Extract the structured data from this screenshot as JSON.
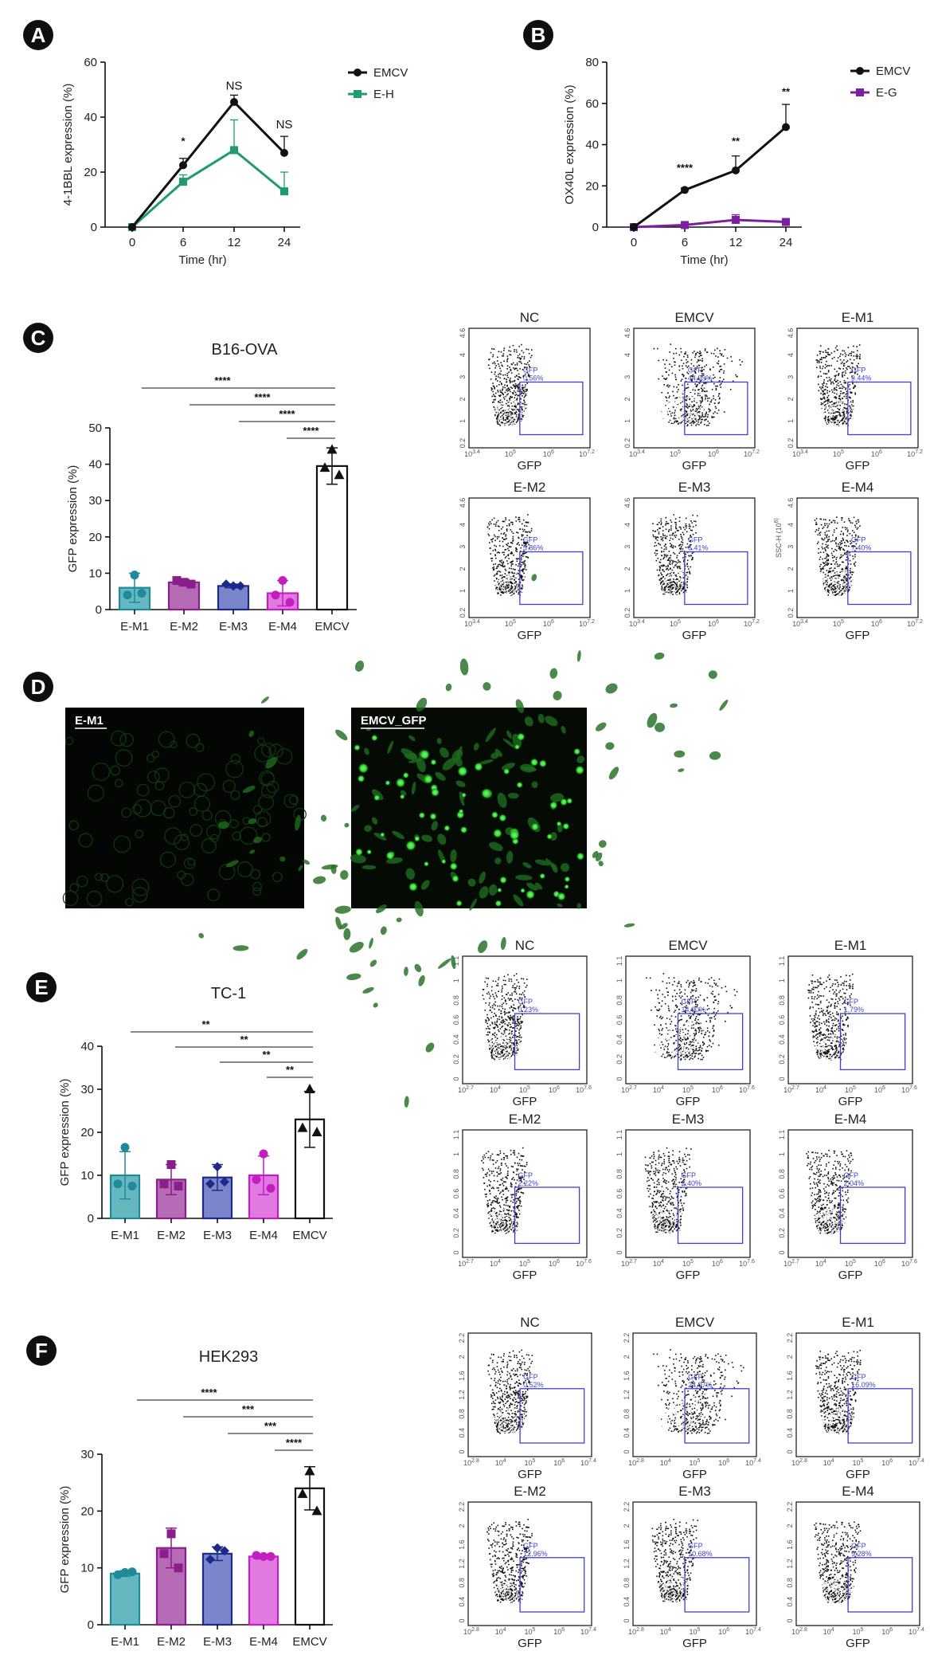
{
  "panels": {
    "A": "A",
    "B": "B",
    "C": "C",
    "D": "D",
    "E": "E",
    "F": "F"
  },
  "chart_data": [
    {
      "id": "A",
      "type": "line",
      "x": [
        0,
        6,
        12,
        24
      ],
      "xlabel": "Time (hr)",
      "ylabel": "4-1BBL expression (%)",
      "ylim": [
        0,
        60
      ],
      "yticks": [
        0,
        20,
        40,
        60
      ],
      "series": [
        {
          "name": "EMCV",
          "values": [
            0,
            22.5,
            45.5,
            27
          ],
          "errors": [
            0,
            2.5,
            2.5,
            6
          ],
          "color": "#111111",
          "marker": "circle"
        },
        {
          "name": "E-H",
          "values": [
            0,
            16.5,
            28,
            13
          ],
          "errors": [
            0,
            2.5,
            11,
            7
          ],
          "color": "#1f9b6e",
          "marker": "square"
        }
      ],
      "annotations": [
        {
          "x": 6,
          "text": "*",
          "y": 30
        },
        {
          "x": 12,
          "text": "NS",
          "y": 50
        },
        {
          "x": 24,
          "text": "NS",
          "y": 36
        }
      ]
    },
    {
      "id": "B",
      "type": "line",
      "x": [
        0,
        6,
        12,
        24
      ],
      "xlabel": "Time (hr)",
      "ylabel": "OX40L expression (%)",
      "ylim": [
        0,
        80
      ],
      "yticks": [
        0,
        20,
        40,
        60,
        80
      ],
      "series": [
        {
          "name": "EMCV",
          "values": [
            0,
            18,
            27.5,
            48.5
          ],
          "errors": [
            0,
            1,
            7,
            11
          ],
          "color": "#111111",
          "marker": "circle"
        },
        {
          "name": "E-G",
          "values": [
            0,
            1,
            3.5,
            2.5
          ],
          "errors": [
            0,
            1.5,
            2.5,
            1.2
          ],
          "color": "#7b1fa2",
          "marker": "square"
        }
      ],
      "annotations": [
        {
          "x": 6,
          "text": "****",
          "y": 27
        },
        {
          "x": 12,
          "text": "**",
          "y": 40
        },
        {
          "x": 24,
          "text": "**",
          "y": 64
        }
      ]
    },
    {
      "id": "C",
      "type": "bar",
      "title": "B16-OVA",
      "categories": [
        "E-M1",
        "E-M2",
        "E-M3",
        "E-M4",
        "EMCV"
      ],
      "values": [
        6,
        7.5,
        6.5,
        4.5,
        39.5
      ],
      "errors": [
        4,
        0.8,
        0.5,
        3.5,
        5
      ],
      "points": [
        [
          9.5,
          4,
          4.5
        ],
        [
          7.5,
          8,
          7
        ],
        [
          6.5,
          7,
          6.5
        ],
        [
          8,
          4,
          2
        ],
        [
          44,
          39,
          37
        ]
      ],
      "ylabel": "GFP expression (%)",
      "ylim": [
        0,
        50
      ],
      "yticks": [
        0,
        10,
        20,
        30,
        40,
        50
      ],
      "significance": [
        "****",
        "****",
        "****",
        "****"
      ]
    },
    {
      "id": "E",
      "type": "bar",
      "title": "TC-1",
      "categories": [
        "E-M1",
        "E-M2",
        "E-M3",
        "E-M4",
        "EMCV"
      ],
      "values": [
        10,
        9,
        9.5,
        10,
        23
      ],
      "errors": [
        5.5,
        3.5,
        3,
        4.5,
        6.5
      ],
      "points": [
        [
          16.5,
          8,
          7.5
        ],
        [
          12.5,
          8,
          7.5
        ],
        [
          12,
          8,
          8.5
        ],
        [
          15,
          9,
          7
        ],
        [
          30,
          21,
          20
        ]
      ],
      "ylabel": "GFP expression (%)",
      "ylim": [
        0,
        40
      ],
      "yticks": [
        0,
        10,
        20,
        30,
        40
      ],
      "significance": [
        "**",
        "**",
        "**",
        "**"
      ]
    },
    {
      "id": "F",
      "type": "bar",
      "title": "HEK293",
      "categories": [
        "E-M1",
        "E-M2",
        "E-M3",
        "E-M4",
        "EMCV"
      ],
      "values": [
        9,
        13.5,
        12.5,
        12,
        24
      ],
      "errors": [
        0.5,
        3.5,
        1.2,
        0.4,
        3.8
      ],
      "points": [
        [
          9.2,
          8.8,
          9.3
        ],
        [
          16,
          12.5,
          10
        ],
        [
          13.5,
          11.5,
          13
        ],
        [
          12,
          12.2,
          12
        ],
        [
          27,
          23,
          20
        ]
      ],
      "ylabel": "GFP expression (%)",
      "ylim": [
        0,
        30
      ],
      "yticks": [
        0,
        10,
        20,
        30
      ],
      "significance": [
        "****",
        "***",
        "***",
        "****"
      ]
    }
  ],
  "bar_colors": [
    {
      "fill": "#66b8c0",
      "stroke": "#1f8a9a",
      "dot": "#1f8a9a"
    },
    {
      "fill": "#b56bb5",
      "stroke": "#8a1e8a",
      "dot": "#8a1e8a"
    },
    {
      "fill": "#7b85cc",
      "stroke": "#1e2a8a",
      "dot": "#1e2a8a"
    },
    {
      "fill": "#e07ae0",
      "stroke": "#c21ec2",
      "dot": "#c21ec2"
    },
    {
      "fill": "#ffffff",
      "stroke": "#111111",
      "dot": "#111111"
    }
  ],
  "flow": {
    "C": {
      "titles": [
        "NC",
        "EMCV",
        "E-M1",
        "E-M2",
        "E-M3",
        "E-M4"
      ],
      "gates": [
        "GFP\n0.56%",
        "GFP\n44.09%",
        "GFP\n9.44%",
        "GFP\n5.86%",
        "GFP\n6.41%",
        "GFP\n7.40%"
      ],
      "yticks": [
        "4.6",
        "4",
        "3",
        "2",
        "1",
        "0.2"
      ],
      "xticks": [
        "10^3.4",
        "10^5",
        "10^6",
        "10^7.2"
      ],
      "xlabel": "GFP",
      "ylabel_extra": "SSC-H (10^6)"
    },
    "E": {
      "titles": [
        "NC",
        "EMCV",
        "E-M1",
        "E-M2",
        "E-M3",
        "E-M4"
      ],
      "gates": [
        "GFP\n0.23%",
        "GFP\n14.00%",
        "GFP\n1.79%",
        "GFP\n2.22%",
        "GFP\n2.40%",
        "GFP\n2.04%"
      ],
      "yticks": [
        "1.1",
        "1",
        "0.8",
        "0.6",
        "0.4",
        "0.2",
        "0"
      ],
      "xticks": [
        "10^2.7",
        "10^4",
        "10^5",
        "10^6",
        "10^7.6"
      ],
      "xlabel": "GFP"
    },
    "F": {
      "titles": [
        "NC",
        "EMCV",
        "E-M1",
        "E-M2",
        "E-M3",
        "E-M4"
      ],
      "gates": [
        "GFP\n0.52%",
        "GFP\n24.97%",
        "GFP\n16.09%",
        "GFP\n12.96%",
        "GFP\n10.68%",
        "GFP\n9.28%"
      ],
      "yticks": [
        "2.2",
        "2",
        "1.6",
        "1.2",
        "0.8",
        "0.4",
        "0"
      ],
      "xticks": [
        "10^2.8",
        "10^4",
        "10^5",
        "10^6",
        "10^7.4"
      ],
      "xlabel": "GFP"
    }
  },
  "micrographs": {
    "left_label": "E-M1",
    "right_label": "EMCV_GFP"
  }
}
